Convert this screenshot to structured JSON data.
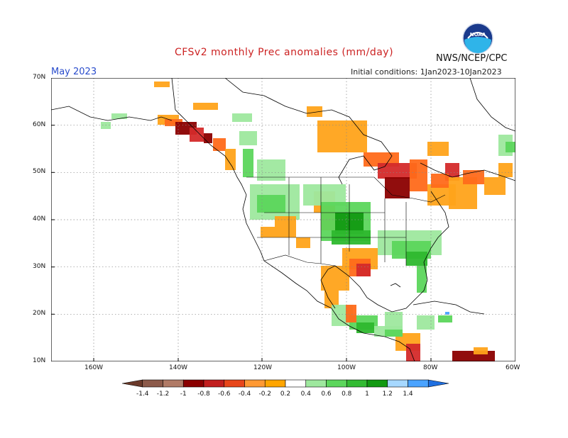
{
  "title": "CFSv2 monthly Prec anomalies (mm/day)",
  "month_label": "May 2023",
  "initial_conditions": "Initial conditions: 1Jan2023-10Jan2023",
  "agency": "NWS/NCEP/CPC",
  "logo_text": "NOAA",
  "lat_labels": [
    "70N",
    "60N",
    "50N",
    "40N",
    "30N",
    "20N",
    "10N"
  ],
  "lon_labels": [
    "160W",
    "140W",
    "120W",
    "100W",
    "80W",
    "60W"
  ],
  "colorbar": {
    "ticks": [
      "-1.4",
      "-1.2",
      "-1",
      "-0.8",
      "-0.6",
      "-0.4",
      "-0.2",
      "0.2",
      "0.4",
      "0.6",
      "0.8",
      "1",
      "1.2",
      "1.4"
    ],
    "colors": [
      "#6b3a2a",
      "#8c5a4a",
      "#b07a66",
      "#8b0000",
      "#c21f1f",
      "#e8461a",
      "#ff9933",
      "#ffa500",
      "#ffffff",
      "#9ee89e",
      "#5cd65c",
      "#33bb33",
      "#129a12",
      "#a6d8ff",
      "#4aa3ff",
      "#1f6fe0"
    ]
  },
  "palette": {
    "dry_strong": "#8b0000",
    "dry_mid": "#d42a2a",
    "dry_light": "#ff6a1a",
    "dry_faint": "#ffa31a",
    "wet_faint": "#9ee89e",
    "wet_light": "#5cd65c",
    "wet_mid": "#2eb82e",
    "wet_strong": "#129a12",
    "blue": "#4aa3ff"
  }
}
